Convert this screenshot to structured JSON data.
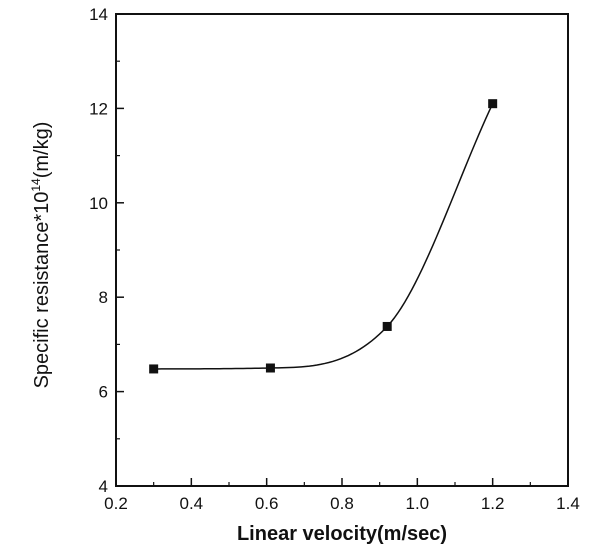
{
  "chart_data": {
    "type": "scatter",
    "title": "",
    "xlabel": "Linear velocity(m/sec)",
    "ylabel_parts": {
      "main": "Specific resistance*10",
      "superscript": "14",
      "unit": "(m/kg)"
    },
    "xlim": [
      0.2,
      1.4
    ],
    "ylim": [
      4,
      14
    ],
    "x_ticks": [
      0.2,
      0.4,
      0.6,
      0.8,
      1.0,
      1.2,
      1.4
    ],
    "x_tick_labels": [
      "0.2",
      "0.4",
      "0.6",
      "0.8",
      "1.0",
      "1.2",
      "1.4"
    ],
    "y_ticks": [
      4,
      6,
      8,
      10,
      12,
      14
    ],
    "y_tick_labels": [
      "4",
      "6",
      "8",
      "10",
      "12",
      "14"
    ],
    "grid": false,
    "legend": "none",
    "marker": "square",
    "fit_line": "smooth curve",
    "colors": {
      "marker": "#111111",
      "line": "#111111",
      "axis": "#111111"
    },
    "series": [
      {
        "x": [
          0.3,
          0.61,
          0.92,
          1.2
        ],
        "y": [
          6.48,
          6.5,
          7.38,
          12.1
        ]
      }
    ]
  }
}
